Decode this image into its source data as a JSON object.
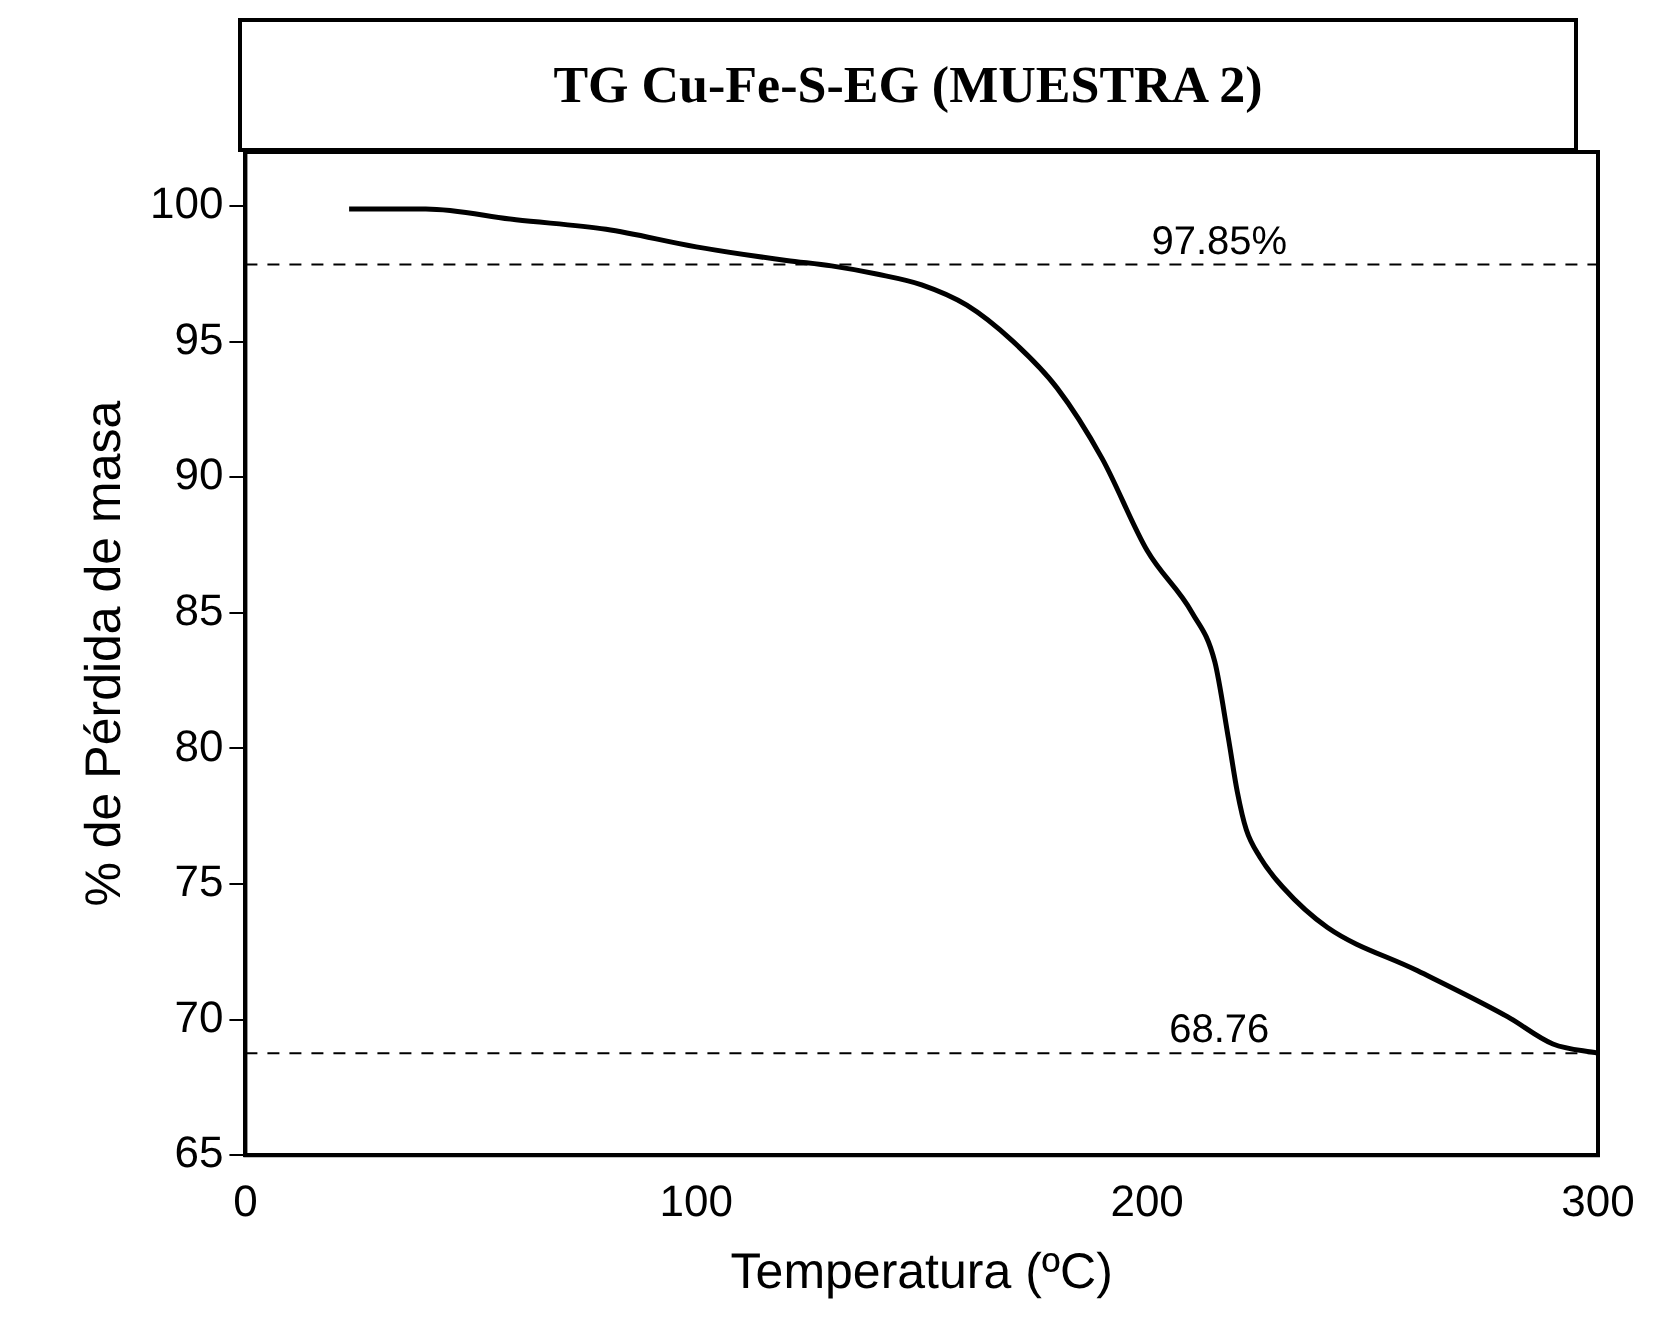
{
  "chart_data": {
    "type": "line",
    "title": "TG  Cu-Fe-S-EG (MUESTRA 2)",
    "xlabel": "Temperatura (ºC)",
    "ylabel": "% de Pérdida de masa",
    "x": [
      23,
      40,
      60,
      80,
      100,
      120,
      130,
      140,
      150,
      160,
      170,
      180,
      190,
      200,
      210,
      215,
      218,
      220,
      222,
      225,
      230,
      240,
      260,
      280,
      290,
      300
    ],
    "series": [
      {
        "color": "#000000",
        "values": [
          99.9,
          99.9,
          99.5,
          99.15,
          98.5,
          98.0,
          97.8,
          97.5,
          97.1,
          96.35,
          95.05,
          93.3,
          90.7,
          87.3,
          85.0,
          83.2,
          80.4,
          78.4,
          77.0,
          76.0,
          74.9,
          73.4,
          71.8,
          70.1,
          69.1,
          68.76
        ]
      }
    ],
    "xlim": [
      0,
      300
    ],
    "xticks": [
      0,
      100,
      200,
      300
    ],
    "ylim": [
      65,
      102
    ],
    "yticks": [
      65,
      70,
      75,
      80,
      85,
      90,
      95,
      100
    ],
    "ref_lines": [
      {
        "axis": "y",
        "value": 97.85,
        "label": "97.85%",
        "line_style": "dashed"
      },
      {
        "axis": "y",
        "value": 68.76,
        "label": "68.76",
        "line_style": "dashed"
      }
    ],
    "grid": false,
    "legend": false,
    "marker": "none",
    "line_style": "solid"
  }
}
